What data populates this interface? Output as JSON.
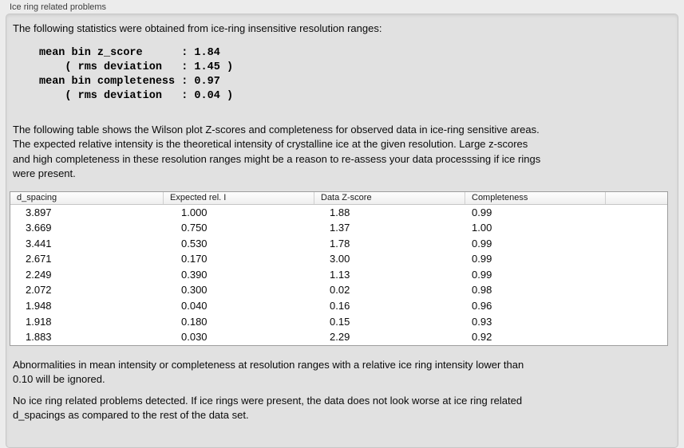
{
  "panel": {
    "title": "Ice ring related problems"
  },
  "sections": {
    "intro": "The following statistics were obtained from ice-ring insensitive resolution ranges:",
    "stats": "mean bin z_score      : 1.84\n    ( rms deviation   : 1.45 )\nmean bin completeness : 0.97\n    ( rms deviation   : 0.04 )",
    "description": "The following table shows the Wilson plot Z-scores and completeness for observed data in ice-ring sensitive areas.\nThe expected relative intensity is the theoretical intensity of crystalline ice at the given resolution. Large z-scores\nand high completeness in these resolution ranges might be a reason to re-assess your data processsing if ice rings\nwere present.",
    "footnote": "Abnormalities in mean intensity or completeness at resolution ranges with a relative ice ring intensity lower than\n0.10 will be ignored.",
    "conclusion": "No ice ring related problems detected. If ice rings were present, the data does not look worse at ice ring related\nd_spacings as compared to the rest of the data set."
  },
  "table": {
    "columns": [
      "d_spacing",
      "Expected rel. I",
      "Data Z-score",
      "Completeness"
    ],
    "rows": [
      [
        "3.897",
        "1.000",
        "1.88",
        "0.99"
      ],
      [
        "3.669",
        "0.750",
        "1.37",
        "1.00"
      ],
      [
        "3.441",
        "0.530",
        "1.78",
        "0.99"
      ],
      [
        "2.671",
        "0.170",
        "3.00",
        "0.99"
      ],
      [
        "2.249",
        "0.390",
        "1.13",
        "0.99"
      ],
      [
        "2.072",
        "0.300",
        "0.02",
        "0.98"
      ],
      [
        "1.948",
        "0.040",
        "0.16",
        "0.96"
      ],
      [
        "1.918",
        "0.180",
        "0.15",
        "0.93"
      ],
      [
        "1.883",
        "0.030",
        "2.29",
        "0.92"
      ]
    ]
  },
  "colors": {
    "page_background": "#ececec",
    "panel_background": "#e1e1e1",
    "table_background": "#ffffff"
  }
}
